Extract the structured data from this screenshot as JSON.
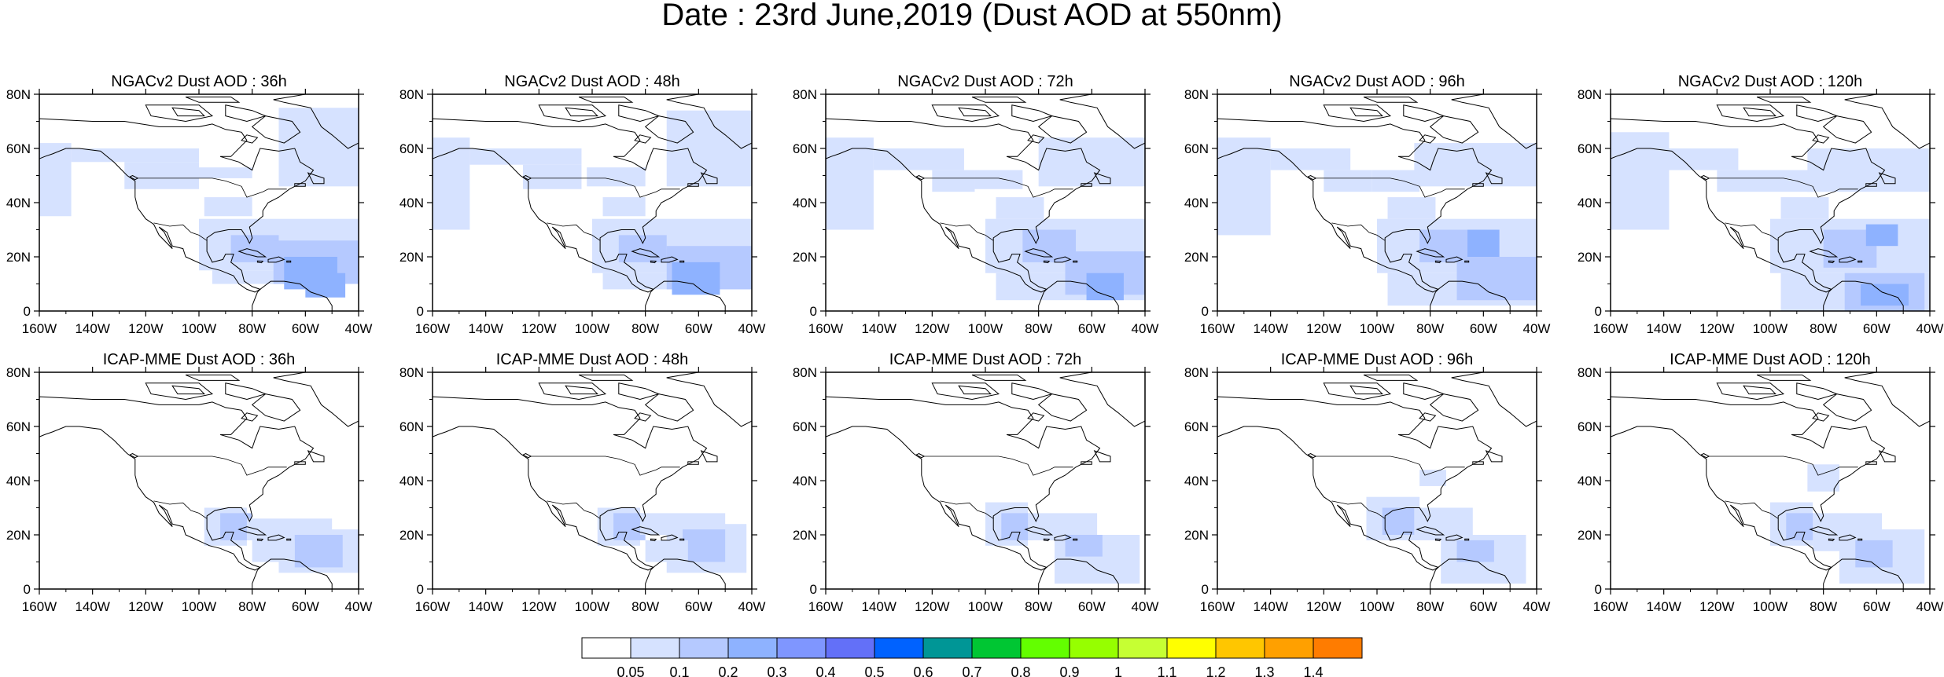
{
  "title": "Date : 23rd June,2019 (Dust AOD at 550nm)",
  "rows": [
    {
      "model": "NGACv2",
      "panels": [
        {
          "title": "NGACv2 Dust AOD : 36h"
        },
        {
          "title": "NGACv2 Dust AOD : 48h"
        },
        {
          "title": "NGACv2 Dust AOD : 72h"
        },
        {
          "title": "NGACv2 Dust AOD : 96h"
        },
        {
          "title": "NGACv2 Dust AOD : 120h"
        }
      ]
    },
    {
      "model": "ICAP-MME",
      "panels": [
        {
          "title": "ICAP-MME Dust AOD : 36h"
        },
        {
          "title": "ICAP-MME Dust AOD : 48h"
        },
        {
          "title": "ICAP-MME Dust AOD : 72h"
        },
        {
          "title": "ICAP-MME Dust AOD : 96h"
        },
        {
          "title": "ICAP-MME Dust AOD : 120h"
        }
      ]
    }
  ],
  "lon_ticks": [
    "160W",
    "140W",
    "120W",
    "100W",
    "80W",
    "60W",
    "40W"
  ],
  "lat_ticks": [
    "80N",
    "60N",
    "40N",
    "20N",
    "0"
  ],
  "lon_range": [
    -160,
    -40
  ],
  "lat_range": [
    0,
    80
  ],
  "colorbar": {
    "levels": [
      "0.05",
      "0.1",
      "0.2",
      "0.3",
      "0.4",
      "0.5",
      "0.6",
      "0.7",
      "0.8",
      "0.9",
      "1",
      "1.1",
      "1.2",
      "1.3",
      "1.4"
    ],
    "colors": [
      "#ffffff",
      "#d6e2ff",
      "#b5c9ff",
      "#8eb2ff",
      "#7f96ff",
      "#6370f8",
      "#0062ff",
      "#009696",
      "#00c633",
      "#63ff00",
      "#96ff00",
      "#c6ff33",
      "#ffff00",
      "#ffc600",
      "#ffa000",
      "#ff7c00",
      "#ff1900"
    ]
  }
}
